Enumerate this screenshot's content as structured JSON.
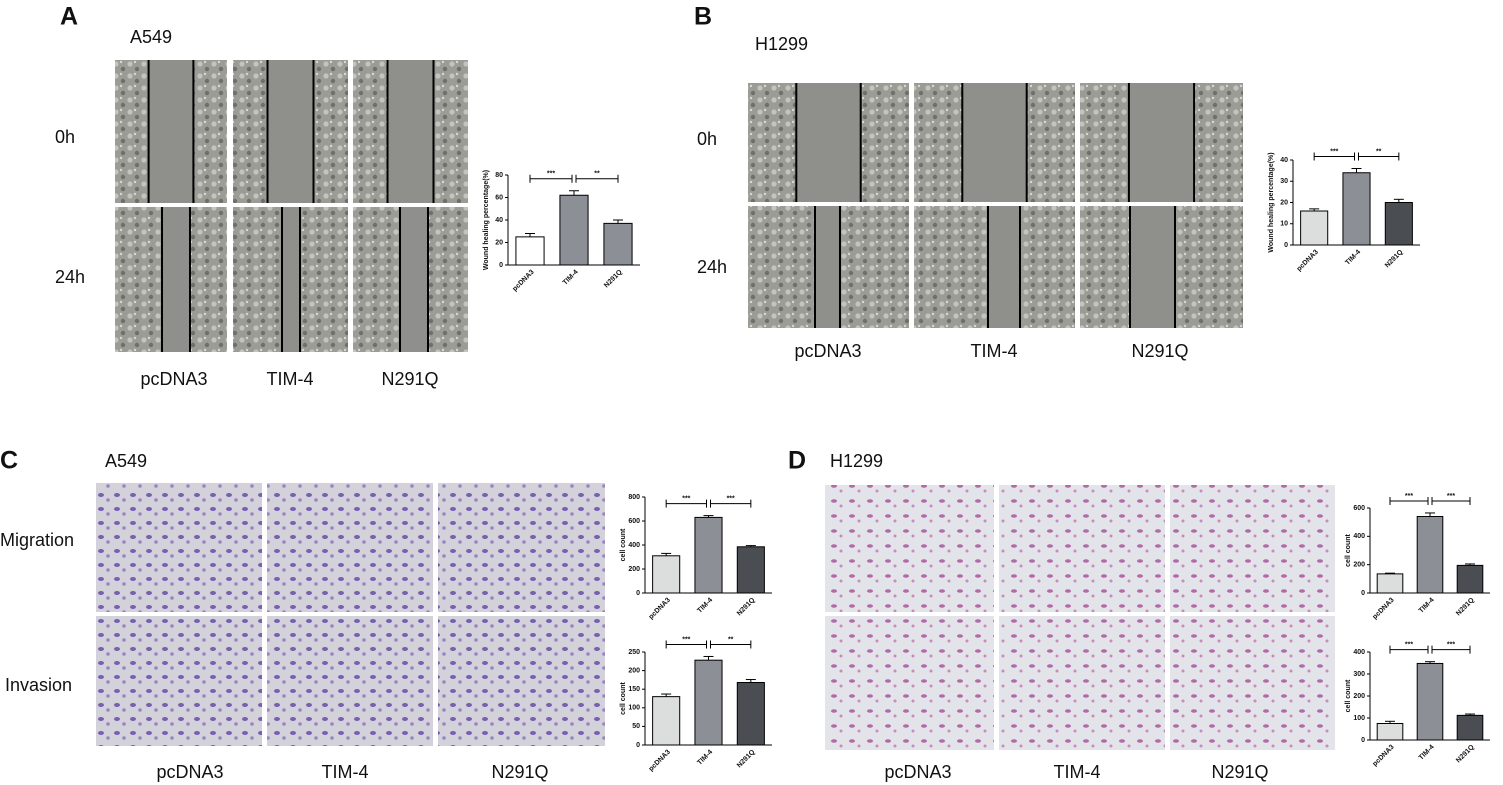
{
  "panels": [
    {
      "letter": "A",
      "cell_line": "A549",
      "rows": [
        "0h",
        "24h"
      ],
      "columns": [
        "pcDNA3",
        "TIM-4",
        "N291Q"
      ]
    },
    {
      "letter": "B",
      "cell_line": "H1299",
      "rows": [
        "0h",
        "24h"
      ],
      "columns": [
        "pcDNA3",
        "TIM-4",
        "N291Q"
      ]
    },
    {
      "letter": "C",
      "cell_line": "A549",
      "rows": [
        "Migration",
        "Invasion"
      ],
      "columns": [
        "pcDNA3",
        "TIM-4",
        "N291Q"
      ]
    },
    {
      "letter": "D",
      "cell_line": "H1299",
      "rows": [
        "Migration",
        "Invasion"
      ],
      "columns": [
        "pcDNA3",
        "TIM-4",
        "N291Q"
      ]
    }
  ],
  "chart_data": [
    {
      "type": "bar",
      "ylabel": "Wound healing percentage(%)",
      "categories": [
        "pcDNA3",
        "TIM-4",
        "N291Q"
      ],
      "values": [
        25,
        62,
        37
      ],
      "errors": [
        3,
        4,
        3
      ],
      "colors": [
        "#ffffff",
        "#8c8f96",
        "#8c8f96"
      ],
      "ylim": [
        0,
        80
      ],
      "yticks": [
        0,
        20,
        40,
        60,
        80
      ],
      "significance": [
        {
          "categories": [
            "pcDNA3",
            "TIM-4"
          ],
          "label": "***"
        },
        {
          "categories": [
            "TIM-4",
            "N291Q"
          ],
          "label": "**"
        }
      ]
    },
    {
      "type": "bar",
      "ylabel": "Wound healing percentage(%)",
      "categories": [
        "pcDNA3",
        "TIM-4",
        "N291Q"
      ],
      "values": [
        16,
        34,
        20
      ],
      "errors": [
        1,
        2,
        1.5
      ],
      "colors": [
        "#dcdedd",
        "#8c8f96",
        "#4a4d52"
      ],
      "ylim": [
        0,
        40
      ],
      "yticks": [
        0,
        10,
        20,
        30,
        40
      ],
      "significance": [
        {
          "categories": [
            "pcDNA3",
            "TIM-4"
          ],
          "label": "***"
        },
        {
          "categories": [
            "TIM-4",
            "N291Q"
          ],
          "label": "**"
        }
      ]
    },
    {
      "type": "bar",
      "ylabel": "cell count",
      "categories": [
        "pcDNA3",
        "TIM-4",
        "N291Q"
      ],
      "values": [
        310,
        630,
        385
      ],
      "errors": [
        20,
        15,
        10
      ],
      "colors": [
        "#dcdedd",
        "#8c8f96",
        "#4a4d52"
      ],
      "ylim": [
        0,
        800
      ],
      "yticks": [
        0,
        200,
        400,
        600,
        800
      ],
      "significance": [
        {
          "categories": [
            "pcDNA3",
            "TIM-4"
          ],
          "label": "***"
        },
        {
          "categories": [
            "TIM-4",
            "N291Q"
          ],
          "label": "***"
        }
      ]
    },
    {
      "type": "bar",
      "ylabel": "cell count",
      "categories": [
        "pcDNA3",
        "TIM-4",
        "N291Q"
      ],
      "values": [
        130,
        228,
        168
      ],
      "errors": [
        7,
        10,
        8
      ],
      "colors": [
        "#dcdedd",
        "#8c8f96",
        "#4a4d52"
      ],
      "ylim": [
        0,
        250
      ],
      "yticks": [
        0,
        50,
        100,
        150,
        200,
        250
      ],
      "significance": [
        {
          "categories": [
            "pcDNA3",
            "TIM-4"
          ],
          "label": "***"
        },
        {
          "categories": [
            "TIM-4",
            "N291Q"
          ],
          "label": "**"
        }
      ]
    },
    {
      "type": "bar",
      "ylabel": "cell count",
      "categories": [
        "pcDNA3",
        "TIM-4",
        "N291Q"
      ],
      "values": [
        135,
        540,
        195
      ],
      "errors": [
        5,
        25,
        10
      ],
      "colors": [
        "#dcdedd",
        "#8c8f96",
        "#4a4d52"
      ],
      "ylim": [
        0,
        600
      ],
      "yticks": [
        0,
        200,
        400,
        600
      ],
      "significance": [
        {
          "categories": [
            "pcDNA3",
            "TIM-4"
          ],
          "label": "***"
        },
        {
          "categories": [
            "TIM-4",
            "N291Q"
          ],
          "label": "***"
        }
      ]
    },
    {
      "type": "bar",
      "ylabel": "cell count",
      "categories": [
        "pcDNA3",
        "TIM-4",
        "N291Q"
      ],
      "values": [
        75,
        348,
        112
      ],
      "errors": [
        10,
        8,
        6
      ],
      "colors": [
        "#dcdedd",
        "#8c8f96",
        "#4a4d52"
      ],
      "ylim": [
        0,
        400
      ],
      "yticks": [
        0,
        100,
        200,
        300,
        400
      ],
      "significance": [
        {
          "categories": [
            "pcDNA3",
            "TIM-4"
          ],
          "label": "***"
        },
        {
          "categories": [
            "TIM-4",
            "N291Q"
          ],
          "label": "***"
        }
      ]
    }
  ]
}
